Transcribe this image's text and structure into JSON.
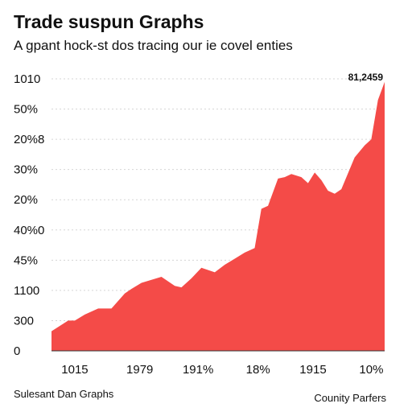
{
  "chart_data": {
    "type": "area",
    "title": "Trade suspun Graphs",
    "subtitle": "A gpant hock-st dos tracing our ie covel enties",
    "xlabel": "",
    "ylabel": "",
    "x_tick_labels": [
      "1015",
      "1979",
      "191%",
      "18%",
      "1915",
      "10%"
    ],
    "y_tick_labels": [
      "0",
      "300",
      "1100",
      "45%",
      "40%0",
      "20%",
      "30%",
      "20%8",
      "50%",
      "1010"
    ],
    "ylim": [
      0,
      9
    ],
    "grid": true,
    "color": "#f44b48",
    "series": [
      {
        "x": [
          0,
          0.05,
          0.07,
          0.1,
          0.14,
          0.18,
          0.2,
          0.22,
          0.24,
          0.27,
          0.3,
          0.33,
          0.37,
          0.39,
          0.42,
          0.45,
          0.49,
          0.52,
          0.55,
          0.58,
          0.61,
          0.63,
          0.65,
          0.68,
          0.7,
          0.72,
          0.75,
          0.77,
          0.79,
          0.81,
          0.83,
          0.85,
          0.87,
          0.91,
          0.94,
          0.96,
          0.98,
          1.0
        ],
        "y": [
          0.65,
          1.0,
          1.0,
          1.2,
          1.4,
          1.4,
          1.65,
          1.9,
          2.05,
          2.25,
          2.35,
          2.45,
          2.15,
          2.1,
          2.4,
          2.75,
          2.6,
          2.85,
          3.05,
          3.25,
          3.4,
          4.7,
          4.8,
          5.7,
          5.75,
          5.85,
          5.75,
          5.55,
          5.9,
          5.65,
          5.3,
          5.2,
          5.35,
          6.4,
          6.8,
          7.0,
          8.3,
          8.9
        ]
      }
    ],
    "annotations": [
      {
        "text": "81,2459"
      }
    ]
  },
  "footer": {
    "left": "Sulesant Dan Graphs",
    "right": "Counity Parfers"
  }
}
